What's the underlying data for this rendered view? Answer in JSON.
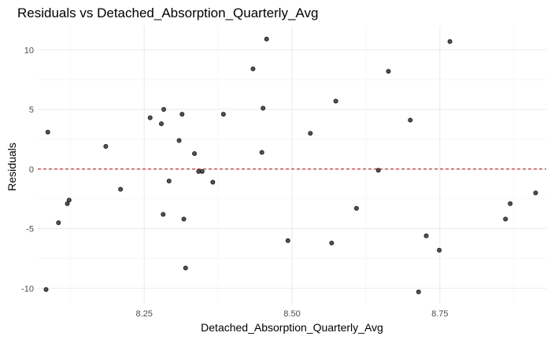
{
  "chart_data": {
    "type": "scatter",
    "title": "Residuals vs Detached_Absorption_Quarterly_Avg",
    "xlabel": "Detached_Absorption_Quarterly_Avg",
    "ylabel": "Residuals",
    "xlim": [
      8.07,
      8.93
    ],
    "ylim": [
      -11.3,
      12.0
    ],
    "x_ticks": [
      8.25,
      8.5,
      8.75
    ],
    "x_tick_labels": [
      "8.25",
      "8.50",
      "8.75"
    ],
    "x_minor_ticks": [
      8.125,
      8.375,
      8.625,
      8.875
    ],
    "y_ticks": [
      -10,
      -5,
      0,
      5,
      10
    ],
    "y_tick_labels": [
      "-10",
      "-5",
      "0",
      "5",
      "10"
    ],
    "y_minor_ticks": [
      -7.5,
      -2.5,
      2.5,
      7.5
    ],
    "reference_line": {
      "y": 0,
      "style": "dashed",
      "color": "#b22222"
    },
    "grid": true,
    "point_color": "#333333",
    "points": [
      {
        "x": 8.087,
        "y": 3.1
      },
      {
        "x": 8.084,
        "y": -10.1
      },
      {
        "x": 8.105,
        "y": -4.5
      },
      {
        "x": 8.12,
        "y": -2.9
      },
      {
        "x": 8.123,
        "y": -2.6
      },
      {
        "x": 8.185,
        "y": 1.9
      },
      {
        "x": 8.21,
        "y": -1.7
      },
      {
        "x": 8.26,
        "y": 4.3
      },
      {
        "x": 8.279,
        "y": 3.8
      },
      {
        "x": 8.283,
        "y": 5.0
      },
      {
        "x": 8.282,
        "y": -3.8
      },
      {
        "x": 8.292,
        "y": -1.0
      },
      {
        "x": 8.309,
        "y": 2.4
      },
      {
        "x": 8.314,
        "y": 4.6
      },
      {
        "x": 8.317,
        "y": -4.2
      },
      {
        "x": 8.32,
        "y": -8.3
      },
      {
        "x": 8.335,
        "y": 1.3
      },
      {
        "x": 8.342,
        "y": -0.2
      },
      {
        "x": 8.348,
        "y": -0.2
      },
      {
        "x": 8.366,
        "y": -1.1
      },
      {
        "x": 8.384,
        "y": 4.6
      },
      {
        "x": 8.434,
        "y": 8.4
      },
      {
        "x": 8.449,
        "y": 1.4
      },
      {
        "x": 8.451,
        "y": 5.1
      },
      {
        "x": 8.457,
        "y": 10.9
      },
      {
        "x": 8.493,
        "y": -6.0
      },
      {
        "x": 8.531,
        "y": 3.0
      },
      {
        "x": 8.567,
        "y": -6.2
      },
      {
        "x": 8.574,
        "y": 5.7
      },
      {
        "x": 8.609,
        "y": -3.3
      },
      {
        "x": 8.646,
        "y": -0.1
      },
      {
        "x": 8.663,
        "y": 8.2
      },
      {
        "x": 8.7,
        "y": 4.1
      },
      {
        "x": 8.714,
        "y": -10.3
      },
      {
        "x": 8.727,
        "y": -5.6
      },
      {
        "x": 8.749,
        "y": -6.8
      },
      {
        "x": 8.767,
        "y": 10.7
      },
      {
        "x": 8.861,
        "y": -4.2
      },
      {
        "x": 8.869,
        "y": -2.9
      },
      {
        "x": 8.912,
        "y": -2.0
      }
    ]
  }
}
